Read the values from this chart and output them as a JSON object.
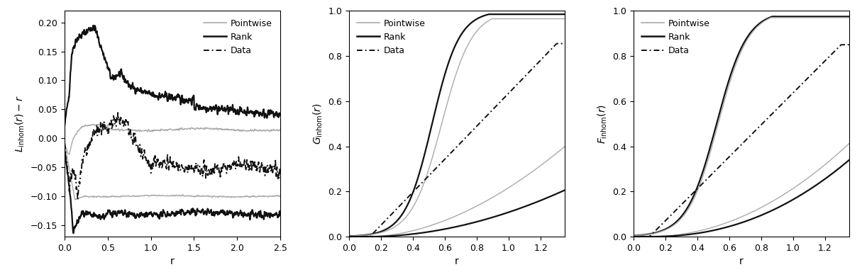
{
  "panel1": {
    "ylabel": "L$_{\\mathrm{inhom}}$(r) − r",
    "xlabel": "r",
    "xlim": [
      0,
      2.5
    ],
    "ylim": [
      -0.17,
      0.22
    ],
    "yticks": [
      -0.15,
      -0.1,
      -0.05,
      0.0,
      0.05,
      0.1,
      0.15,
      0.2
    ],
    "xticks": [
      0.0,
      0.5,
      1.0,
      1.5,
      2.0,
      2.5
    ]
  },
  "panel2": {
    "ylabel": "G$_{\\mathrm{inhom}}$(r)",
    "xlabel": "r",
    "xlim": [
      0,
      1.35
    ],
    "ylim": [
      0,
      1.0
    ],
    "yticks": [
      0.0,
      0.2,
      0.4,
      0.6,
      0.8,
      1.0
    ],
    "xticks": [
      0.0,
      0.2,
      0.4,
      0.6,
      0.8,
      1.0,
      1.2
    ]
  },
  "panel3": {
    "ylabel": "F$_{\\mathrm{inhom}}$(r)",
    "xlabel": "r",
    "xlim": [
      0,
      1.35
    ],
    "ylim": [
      0,
      1.0
    ],
    "yticks": [
      0.0,
      0.2,
      0.4,
      0.6,
      0.8,
      1.0
    ],
    "xticks": [
      0.0,
      0.2,
      0.4,
      0.6,
      0.8,
      1.0,
      1.2
    ]
  },
  "legend": {
    "pointwise_color": "#aaaaaa",
    "rank_color": "#111111",
    "data_color": "#111111"
  }
}
